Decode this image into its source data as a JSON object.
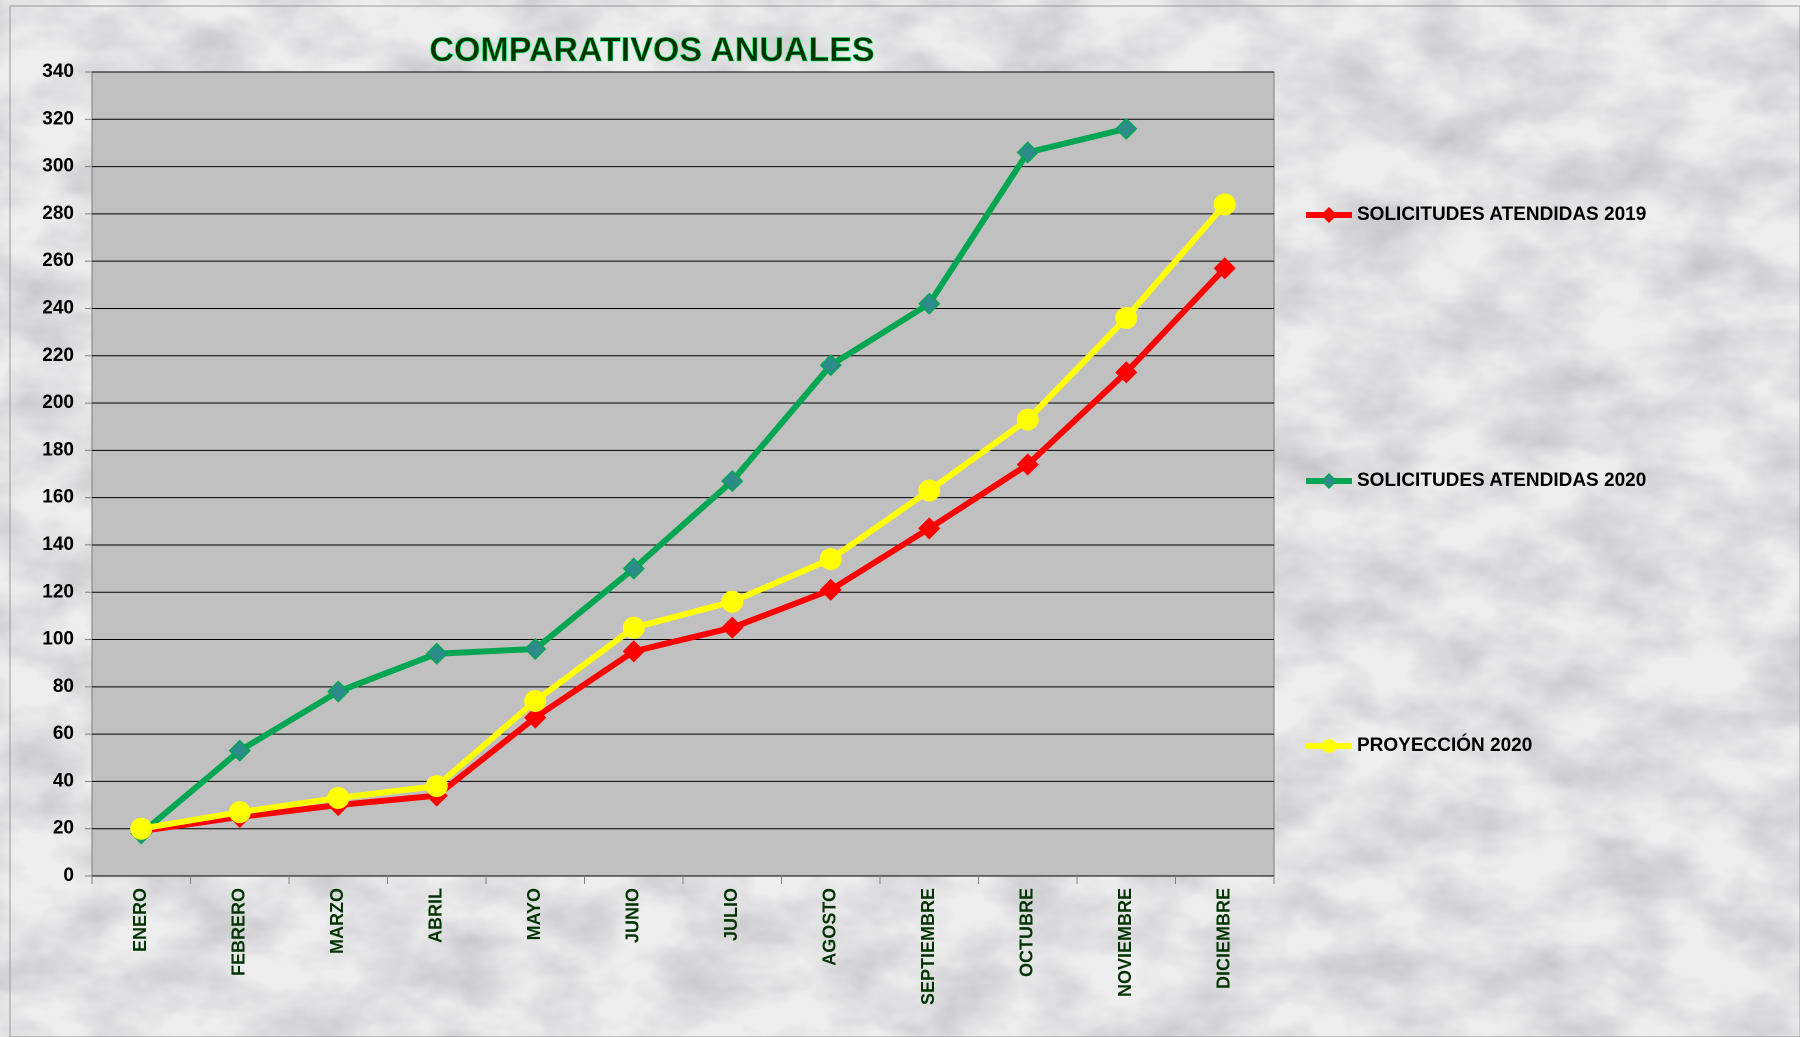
{
  "chart_data": {
    "type": "line",
    "title": "COMPARATIVOS ANUALES",
    "categories": [
      "ENERO",
      "FEBRERO",
      "MARZO",
      "ABRIL",
      "MAYO",
      "JUNIO",
      "JULIO",
      "AGOSTO",
      "SEPTIEMBRE",
      "OCTUBRE",
      "NOVIEMBRE",
      "DICIEMBRE"
    ],
    "series": [
      {
        "name": "SOLICITUDES ATENDIDAS 2019",
        "color": "#ff0000",
        "marker": "diamond",
        "values": [
          19,
          25,
          30,
          34,
          67,
          95,
          105,
          121,
          147,
          174,
          213,
          257
        ]
      },
      {
        "name": "SOLICITUDES ATENDIDAS 2020",
        "color": "#00a651",
        "marker": "diamond",
        "values": [
          18,
          53,
          78,
          94,
          96,
          130,
          167,
          216,
          242,
          306,
          316,
          null
        ]
      },
      {
        "name": "PROYECCIÓN 2020",
        "color": "#ffff00",
        "marker": "circle",
        "values": [
          20,
          27,
          33,
          38,
          74,
          105,
          116,
          134,
          163,
          193,
          236,
          284
        ]
      }
    ],
    "ylim": [
      0,
      340
    ],
    "yticks": [
      0,
      20,
      40,
      60,
      80,
      100,
      120,
      140,
      160,
      180,
      200,
      220,
      240,
      260,
      280,
      300,
      320,
      340
    ],
    "grid": true,
    "legend": "right"
  }
}
